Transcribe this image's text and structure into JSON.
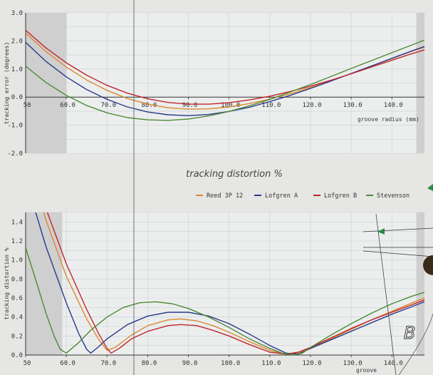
{
  "title": "tracking distortion %",
  "corner_letter": "B",
  "colors": {
    "Reed 3P 12": "#d9892e",
    "Lofgren A": "#2a3a8c",
    "Lofgren B": "#c0262c",
    "Stevenson": "#4e8a34"
  },
  "chart_data": [
    {
      "type": "line",
      "title": "",
      "xlabel": "groove radius (mm)",
      "ylabel": "tracking error (degrees)",
      "xlim": [
        50,
        148
      ],
      "ylim": [
        -2.0,
        3.0
      ],
      "x_ticks": [
        "50",
        "60.0",
        "70.0",
        "80.0",
        "90.0",
        "100.0",
        "110.0",
        "120.0",
        "130.0",
        "140.0"
      ],
      "y_ticks": [
        "3.0",
        "2.0",
        "1.0",
        "0.0",
        "-1.0",
        "-2.0"
      ],
      "grid": true,
      "shaded_x_ranges": [
        [
          50,
          60
        ],
        [
          146,
          148
        ]
      ],
      "vertical_marker_x": 76.6,
      "series": [
        {
          "name": "Reed 3P 12",
          "x": [
            50,
            55,
            60,
            65,
            70,
            75,
            80,
            85,
            90,
            95,
            100,
            105,
            110,
            115,
            120,
            125,
            130,
            135,
            140,
            145,
            148
          ],
          "y": [
            2.28,
            1.62,
            1.07,
            0.61,
            0.24,
            -0.05,
            -0.25,
            -0.38,
            -0.43,
            -0.42,
            -0.35,
            -0.23,
            -0.07,
            0.12,
            0.34,
            0.58,
            0.84,
            1.1,
            1.37,
            1.64,
            1.78
          ]
        },
        {
          "name": "Lofgren A",
          "x": [
            50,
            55,
            60,
            65,
            70,
            75,
            80,
            85,
            90,
            95,
            100,
            105,
            110,
            115,
            120,
            125,
            130,
            135,
            140,
            145,
            148
          ],
          "y": [
            1.95,
            1.27,
            0.72,
            0.27,
            -0.08,
            -0.35,
            -0.53,
            -0.63,
            -0.66,
            -0.62,
            -0.51,
            -0.36,
            -0.16,
            0.06,
            0.31,
            0.57,
            0.84,
            1.11,
            1.38,
            1.65,
            1.8
          ]
        },
        {
          "name": "Lofgren B",
          "x": [
            50,
            55,
            60,
            65,
            70,
            75,
            80,
            85,
            90,
            95,
            100,
            105,
            110,
            115,
            120,
            125,
            130,
            135,
            140,
            145,
            148
          ],
          "y": [
            2.38,
            1.75,
            1.22,
            0.78,
            0.42,
            0.14,
            -0.06,
            -0.19,
            -0.25,
            -0.25,
            -0.2,
            -0.1,
            0.03,
            0.2,
            0.39,
            0.6,
            0.83,
            1.07,
            1.31,
            1.55,
            1.68
          ]
        },
        {
          "name": "Stevenson",
          "x": [
            50,
            55,
            60,
            65,
            70,
            75,
            80,
            85,
            90,
            95,
            100,
            105,
            110,
            115,
            120,
            125,
            130,
            135,
            140,
            145,
            148
          ],
          "y": [
            1.1,
            0.52,
            0.06,
            -0.3,
            -0.56,
            -0.73,
            -0.81,
            -0.83,
            -0.78,
            -0.67,
            -0.51,
            -0.31,
            -0.08,
            0.18,
            0.45,
            0.73,
            1.02,
            1.3,
            1.58,
            1.86,
            2.03
          ]
        }
      ]
    },
    {
      "type": "line",
      "title": "tracking distortion %",
      "xlabel": "groove",
      "ylabel": "tracking distortion %",
      "xlim": [
        50,
        148
      ],
      "ylim": [
        0.0,
        1.5
      ],
      "x_ticks": [
        "50",
        "60.0",
        "70.0",
        "80.0",
        "90.0",
        "100.0",
        "110.0",
        "120.0",
        "130.0",
        "140.0"
      ],
      "y_ticks": [
        "1.4",
        "1.2",
        "1.0",
        "0.8",
        "0.6",
        "0.4",
        "0.2",
        "0.0"
      ],
      "grid": true,
      "legend": "top",
      "shaded_x_ranges": [
        [
          50,
          59
        ],
        [
          146,
          148
        ]
      ],
      "vertical_marker_x": 76.6,
      "series": [
        {
          "name": "Reed 3P 12",
          "x": [
            50,
            55,
            60,
            65,
            68,
            70,
            72,
            76,
            80,
            85,
            88,
            92,
            96,
            100,
            105,
            110,
            114,
            117,
            120,
            125,
            130,
            135,
            140,
            145,
            148
          ],
          "y": [
            2.15,
            1.42,
            0.83,
            0.38,
            0.16,
            0.05,
            0.08,
            0.21,
            0.31,
            0.37,
            0.38,
            0.36,
            0.31,
            0.24,
            0.14,
            0.05,
            0.01,
            0.02,
            0.07,
            0.17,
            0.27,
            0.37,
            0.46,
            0.55,
            0.6
          ]
        },
        {
          "name": "Lofgren A",
          "x": [
            50,
            55,
            60,
            63,
            65,
            66,
            68,
            70,
            75,
            80,
            85,
            90,
            95,
            100,
            105,
            110,
            114,
            117,
            120,
            125,
            130,
            135,
            140,
            145,
            148
          ],
          "y": [
            1.85,
            1.14,
            0.55,
            0.23,
            0.06,
            0.02,
            0.09,
            0.17,
            0.32,
            0.41,
            0.45,
            0.45,
            0.41,
            0.33,
            0.22,
            0.1,
            0.02,
            0.01,
            0.07,
            0.16,
            0.25,
            0.34,
            0.43,
            0.51,
            0.56
          ]
        },
        {
          "name": "Lofgren B",
          "x": [
            50,
            55,
            60,
            65,
            68,
            70,
            71,
            73,
            76,
            80,
            85,
            88,
            92,
            96,
            100,
            105,
            110,
            114,
            117,
            120,
            125,
            130,
            135,
            140,
            145,
            148
          ],
          "y": [
            2.25,
            1.54,
            0.96,
            0.48,
            0.22,
            0.07,
            0.02,
            0.07,
            0.17,
            0.25,
            0.31,
            0.32,
            0.31,
            0.26,
            0.2,
            0.11,
            0.03,
            0.01,
            0.03,
            0.08,
            0.18,
            0.28,
            0.37,
            0.45,
            0.53,
            0.58
          ]
        },
        {
          "name": "Stevenson",
          "x": [
            50,
            53,
            55,
            57,
            58.5,
            60,
            63,
            66,
            70,
            74,
            78,
            82,
            86,
            90,
            95,
            100,
            105,
            110,
            113,
            116,
            118,
            120,
            125,
            130,
            135,
            140,
            145,
            148
          ],
          "y": [
            1.13,
            0.72,
            0.44,
            0.2,
            0.06,
            0.02,
            0.13,
            0.26,
            0.4,
            0.5,
            0.55,
            0.56,
            0.54,
            0.49,
            0.4,
            0.29,
            0.17,
            0.07,
            0.02,
            0.0,
            0.02,
            0.08,
            0.21,
            0.33,
            0.44,
            0.54,
            0.62,
            0.66
          ]
        }
      ]
    }
  ]
}
